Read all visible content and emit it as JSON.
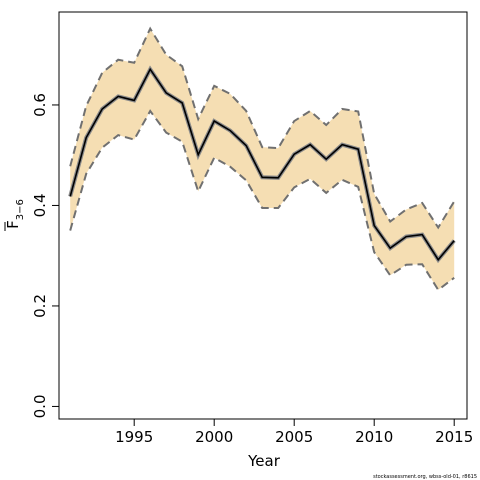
{
  "chart_data": {
    "type": "line",
    "xlabel": "Year",
    "ylabel_main": "F",
    "ylabel_sub": "3−6",
    "xlim": [
      1990.3,
      2015.8
    ],
    "ylim": [
      -0.025,
      0.785
    ],
    "xticks": [
      1995,
      2000,
      2005,
      2010,
      2015
    ],
    "xtick_labels": [
      "1995",
      "2000",
      "2005",
      "2010",
      "2015"
    ],
    "yticks": [
      0.0,
      0.2,
      0.4,
      0.6
    ],
    "ytick_labels": [
      "0.0",
      "0.2",
      "0.4",
      "0.6"
    ],
    "grid": false,
    "x": [
      1991,
      1992,
      1993,
      1994,
      1995,
      1996,
      1997,
      1998,
      1999,
      2000,
      2001,
      2002,
      2003,
      2004,
      2005,
      2006,
      2007,
      2008,
      2009,
      2010,
      2011,
      2012,
      2013,
      2014,
      2015
    ],
    "series": [
      {
        "name": "",
        "role": "estimate",
        "values": [
          0.418,
          0.535,
          0.592,
          0.617,
          0.609,
          0.671,
          0.624,
          0.604,
          0.501,
          0.568,
          0.549,
          0.519,
          0.456,
          0.455,
          0.502,
          0.521,
          0.492,
          0.521,
          0.512,
          0.36,
          0.315,
          0.338,
          0.342,
          0.292,
          0.33
        ]
      },
      {
        "name": "",
        "role": "upper",
        "values": [
          0.478,
          0.598,
          0.664,
          0.69,
          0.684,
          0.752,
          0.7,
          0.677,
          0.572,
          0.638,
          0.622,
          0.588,
          0.516,
          0.514,
          0.568,
          0.588,
          0.56,
          0.592,
          0.587,
          0.423,
          0.368,
          0.392,
          0.405,
          0.356,
          0.408
        ]
      },
      {
        "name": "",
        "role": "lower",
        "values": [
          0.35,
          0.463,
          0.515,
          0.54,
          0.531,
          0.588,
          0.545,
          0.527,
          0.428,
          0.495,
          0.477,
          0.45,
          0.395,
          0.395,
          0.436,
          0.453,
          0.425,
          0.451,
          0.437,
          0.307,
          0.261,
          0.282,
          0.283,
          0.232,
          0.256
        ]
      }
    ],
    "band_color": "#f5deb3",
    "line_color": "#000000",
    "footer": "stockassessment.org, wbss-old-01, r8615"
  }
}
